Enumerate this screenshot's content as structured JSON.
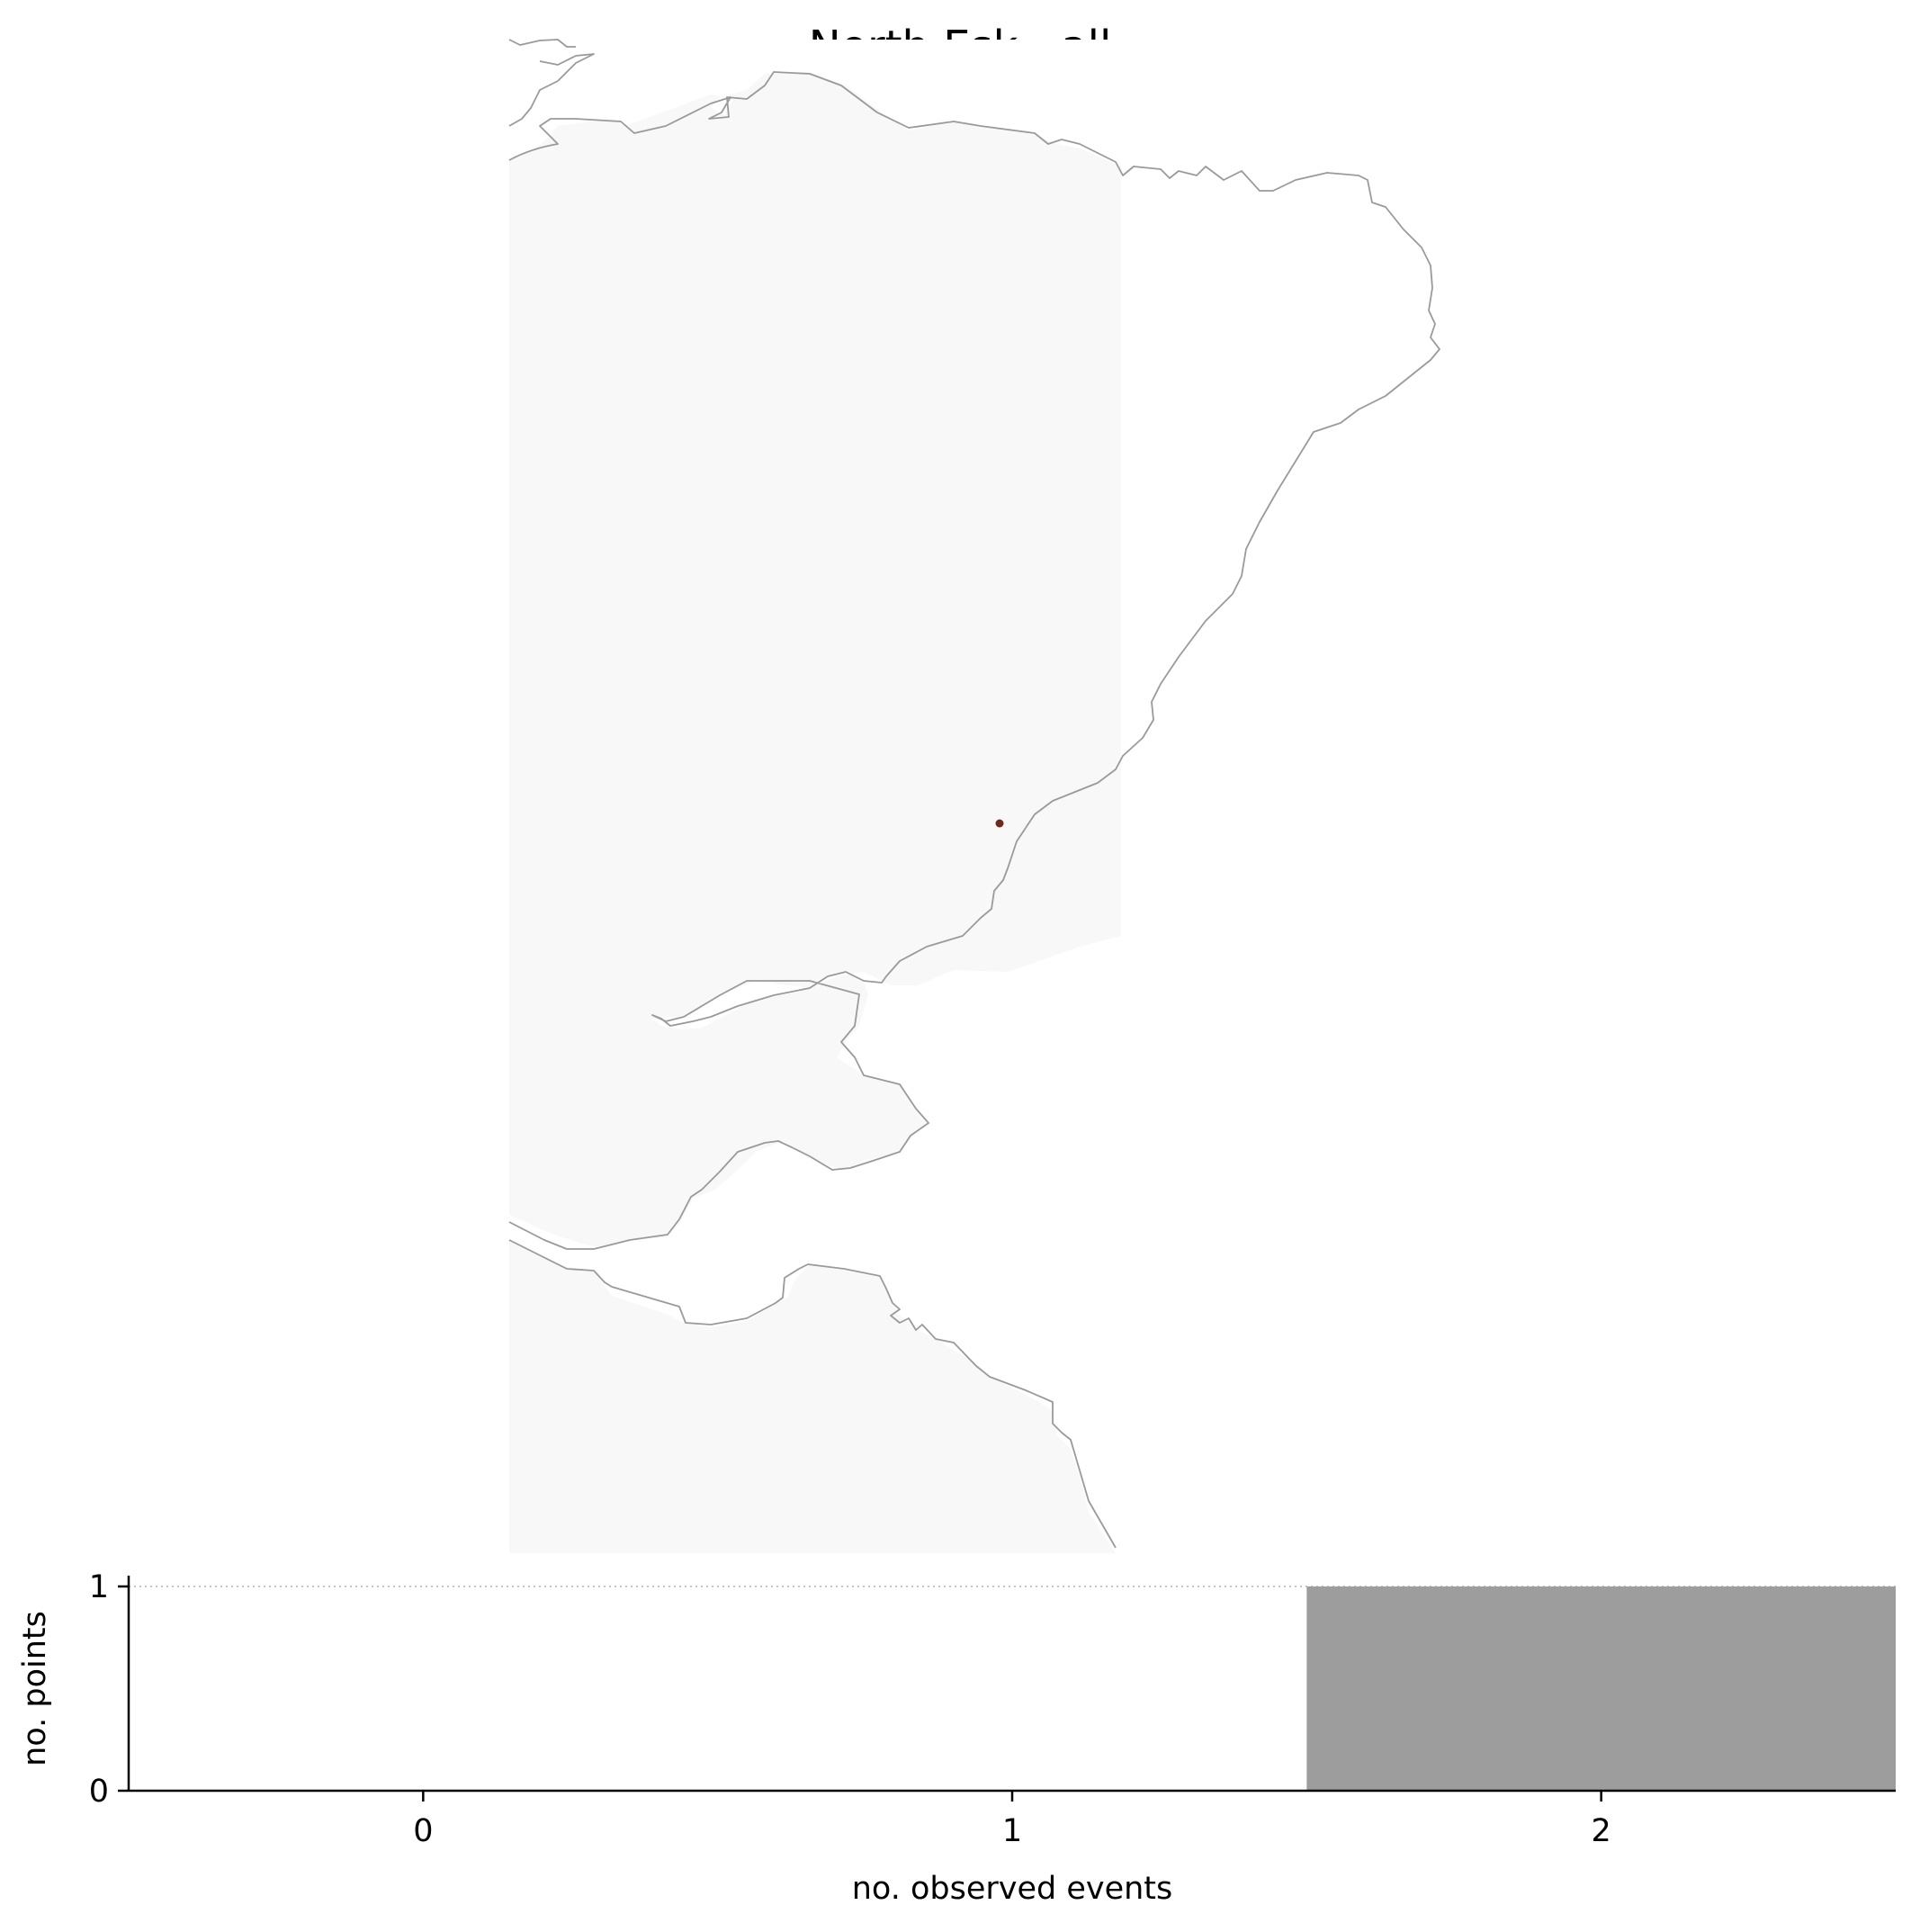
{
  "title": "North Esk - all",
  "map": {
    "land_color": "#f8f8f8",
    "coast_color": "#9a9a9a",
    "site_marker": {
      "color": "#6b2a1c"
    }
  },
  "chart_data": {
    "type": "bar",
    "categories": [
      "0",
      "1",
      "2"
    ],
    "x": [
      0,
      1,
      2
    ],
    "values": [
      0,
      0,
      1
    ],
    "bar_color": "#9d9d9d",
    "xlabel": "no. observed events",
    "ylabel": "no. points",
    "xlim": [
      -0.5,
      2.5
    ],
    "ylim": [
      0,
      1
    ],
    "xticks": [
      0,
      1,
      2
    ],
    "yticks": [
      0,
      1
    ],
    "grid": "dotted line at y=1"
  }
}
